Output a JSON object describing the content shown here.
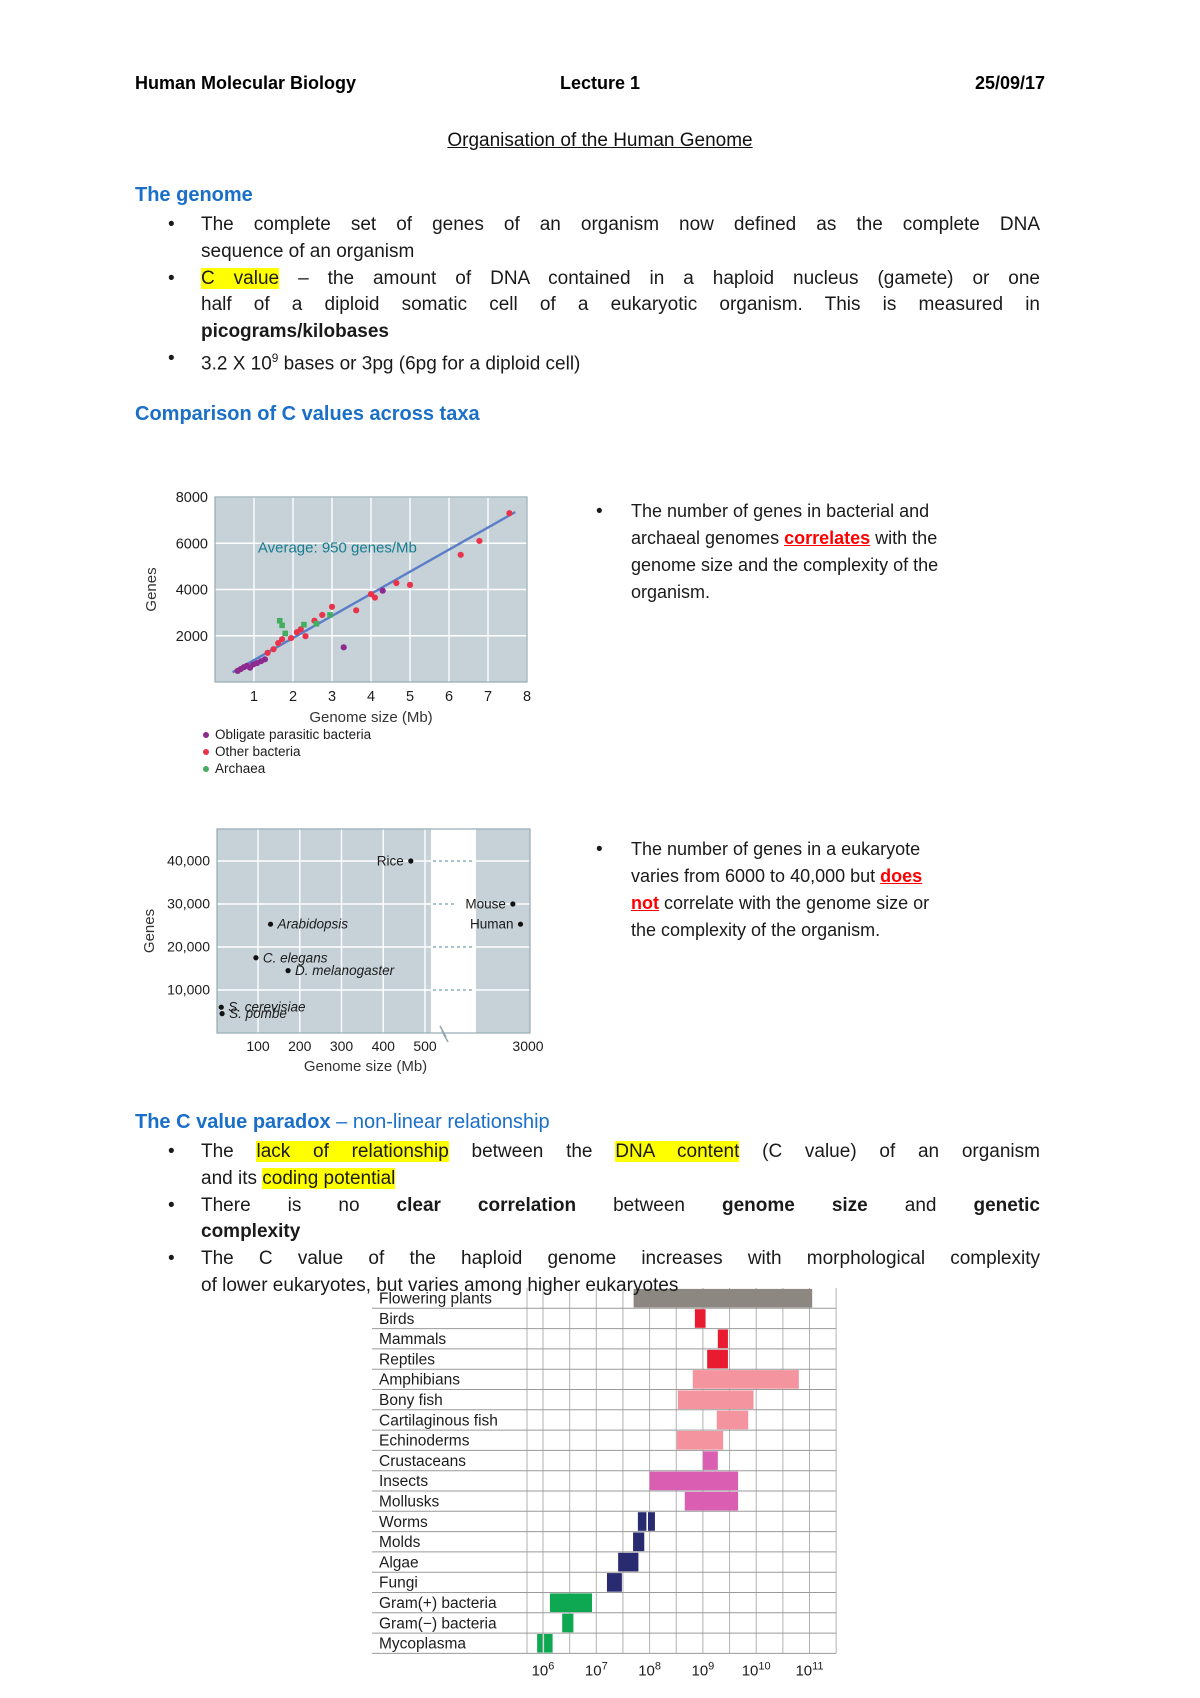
{
  "ui": {
    "bullet": "•"
  },
  "header": {
    "course": "Human Molecular Biology",
    "lecture": "Lecture 1",
    "date": "25/09/17"
  },
  "title": "Organisation of the Human Genome",
  "sections": {
    "genome": {
      "heading": "The genome",
      "bullets": [
        {
          "lines": [
            {
              "j": true,
              "s": [
                {
                  "t": "The complete set of genes of an organism now defined as the complete DNA"
                }
              ]
            },
            {
              "s": [
                {
                  "t": "sequence of an organism"
                }
              ]
            }
          ]
        },
        {
          "lines": [
            {
              "j": true,
              "s": [
                {
                  "t": "C value",
                  "hl": true
                },
                {
                  "t": " – the amount of DNA contained in a haploid nucleus (gamete) or one"
                }
              ]
            },
            {
              "j": true,
              "s": [
                {
                  "t": "half of a diploid somatic cell of a eukaryotic organism. This is measured in"
                }
              ]
            },
            {
              "s": [
                {
                  "t": "picograms/kilobases",
                  "b": true
                }
              ]
            }
          ]
        },
        {
          "lines": [
            {
              "s": [
                {
                  "t": "3.2 X 10"
                },
                {
                  "t": "9",
                  "sup": true
                },
                {
                  "t": " bases or 3pg (6pg for a diploid cell)"
                }
              ]
            }
          ]
        }
      ]
    },
    "comparison": {
      "heading": "Comparison of C values across taxa"
    },
    "paradox": {
      "heading_bold": "The C value paradox",
      "heading_rest": " – non-linear  relationship",
      "bullets": [
        {
          "lines": [
            {
              "j": true,
              "s": [
                {
                  "t": "The "
                },
                {
                  "t": "lack of relationship",
                  "hl": true
                },
                {
                  "t": " between the "
                },
                {
                  "t": "DNA content",
                  "hl": true
                },
                {
                  "t": " (C value) of an organism"
                }
              ]
            },
            {
              "s": [
                {
                  "t": "and its "
                },
                {
                  "t": "coding potential",
                  "hl": true
                }
              ]
            }
          ]
        },
        {
          "lines": [
            {
              "j": true,
              "s": [
                {
                  "t": "There is no "
                },
                {
                  "t": "clear correlation",
                  "b": true
                },
                {
                  "t": " between "
                },
                {
                  "t": "genome size",
                  "b": true
                },
                {
                  "t": " and "
                },
                {
                  "t": "genetic",
                  "b": true
                }
              ]
            },
            {
              "s": [
                {
                  "t": "complexity",
                  "b": true
                }
              ]
            }
          ]
        },
        {
          "lines": [
            {
              "j": true,
              "s": [
                {
                  "t": "The C value of the haploid genome increases with morphological complexity"
                }
              ]
            },
            {
              "s": [
                {
                  "t": "of lower eukaryotes, but varies among higher eukaryotes"
                }
              ]
            }
          ]
        }
      ]
    }
  },
  "side_notes": [
    {
      "lines": [
        {
          "s": [
            {
              "t": "The number of genes in bacterial and"
            }
          ]
        },
        {
          "s": [
            {
              "t": "archaeal genomes "
            },
            {
              "t": "correlates",
              "red": true
            },
            {
              "t": " with the"
            }
          ]
        },
        {
          "s": [
            {
              "t": "genome size and the complexity of the"
            }
          ]
        },
        {
          "s": [
            {
              "t": "organism."
            }
          ]
        }
      ]
    },
    {
      "lines": [
        {
          "s": [
            {
              "t": "The number of genes in a eukaryote"
            }
          ]
        },
        {
          "s": [
            {
              "t": "varies from 6000 to 40,000 but "
            },
            {
              "t": "does",
              "red": true
            }
          ]
        },
        {
          "s": [
            {
              "t": "not",
              "red": true
            },
            {
              "t": " correlate with the genome size or"
            }
          ]
        },
        {
          "s": [
            {
              "t": "the complexity of the organism."
            }
          ]
        }
      ]
    }
  ],
  "chart_data": [
    {
      "type": "scatter",
      "annotation": "Average: 950 genes/Mb",
      "annotation_color": "#177d8e",
      "xlabel": "Genome size (Mb)",
      "ylabel": "Genes",
      "xlim": [
        0,
        8
      ],
      "ylim": [
        0,
        8000
      ],
      "xticks": [
        1,
        2,
        3,
        4,
        5,
        6,
        7,
        8
      ],
      "yticks": [
        2000,
        4000,
        6000,
        8000
      ],
      "bg": "#c6d1d8",
      "trendline": {
        "x1": 0.45,
        "y1": 420,
        "x2": 7.7,
        "y2": 7350,
        "color": "#5b7ec8"
      },
      "legend": [
        {
          "label": "Obligate parasitic bacteria",
          "color": "#8d2a8f"
        },
        {
          "label": "Other bacteria",
          "color": "#e8334a"
        },
        {
          "label": "Archaea",
          "color": "#44ae60"
        }
      ],
      "series": [
        {
          "name": "Obligate parasitic bacteria",
          "color": "#8d2a8f",
          "marker": "circle",
          "points": [
            [
              0.58,
              480
            ],
            [
              0.66,
              560
            ],
            [
              0.74,
              640
            ],
            [
              0.82,
              700
            ],
            [
              0.9,
              620
            ],
            [
              0.98,
              760
            ],
            [
              1.08,
              820
            ],
            [
              1.18,
              900
            ],
            [
              1.28,
              980
            ],
            [
              3.3,
              1500
            ],
            [
              4.3,
              3950
            ]
          ]
        },
        {
          "name": "Other bacteria",
          "color": "#e8334a",
          "marker": "circle",
          "points": [
            [
              1.35,
              1260
            ],
            [
              1.5,
              1420
            ],
            [
              1.62,
              1680
            ],
            [
              1.72,
              1850
            ],
            [
              1.95,
              1900
            ],
            [
              2.1,
              2150
            ],
            [
              2.2,
              2280
            ],
            [
              2.32,
              1980
            ],
            [
              2.55,
              2650
            ],
            [
              2.75,
              2900
            ],
            [
              3.0,
              3250
            ],
            [
              3.62,
              3100
            ],
            [
              4.0,
              3800
            ],
            [
              4.1,
              3650
            ],
            [
              4.65,
              4280
            ],
            [
              5.0,
              4200
            ],
            [
              6.3,
              5500
            ],
            [
              6.78,
              6100
            ],
            [
              7.55,
              7300
            ]
          ]
        },
        {
          "name": "Archaea",
          "color": "#44ae60",
          "marker": "square",
          "points": [
            [
              1.66,
              2650
            ],
            [
              1.72,
              2450
            ],
            [
              1.8,
              2100
            ],
            [
              2.28,
              2480
            ],
            [
              2.6,
              2520
            ],
            [
              2.95,
              2900
            ]
          ]
        }
      ]
    },
    {
      "type": "scatter-broken-axis",
      "xlabel": "Genome size (Mb)",
      "ylabel": "Genes",
      "bg": "#c6d1d8",
      "xticks_left": [
        100,
        200,
        300,
        400,
        500
      ],
      "xtick_right": "3000",
      "ytick_labels": [
        "10,000",
        "20,000",
        "30,000",
        "40,000"
      ],
      "ytick_values": [
        10000,
        20000,
        30000,
        40000
      ],
      "points": [
        {
          "label": "Rice",
          "mb": 466,
          "genes": 40000,
          "side": "left",
          "italic": false
        },
        {
          "label": "Mouse",
          "mb": 2500,
          "genes": 30000,
          "side": "left",
          "italic": false
        },
        {
          "label": "Human",
          "mb": 2900,
          "genes": 25300,
          "side": "left",
          "italic": false
        },
        {
          "label": "Arabidopsis",
          "mb": 130,
          "genes": 25300,
          "side": "right",
          "italic": true
        },
        {
          "label": "C. elegans",
          "mb": 95,
          "genes": 17500,
          "side": "right",
          "italic": true
        },
        {
          "label": "D. melanogaster",
          "mb": 172,
          "genes": 14500,
          "side": "right",
          "italic": true
        },
        {
          "label": "S. cerevisiae",
          "mb": 12,
          "genes": 6000,
          "side": "right",
          "italic": true
        },
        {
          "label": "S. pombe",
          "mb": 14,
          "genes": 4500,
          "side": "right",
          "italic": true
        }
      ]
    },
    {
      "type": "bar-range-log",
      "xlabel_exponents": [
        6,
        7,
        8,
        9,
        10,
        11
      ],
      "x_base": "10",
      "rows": [
        {
          "label": "Flowering plants",
          "color": "#8c8781",
          "segments": [
            [
              7.7,
              11.05
            ]
          ]
        },
        {
          "label": "Birds",
          "color": "#e81b30",
          "segments": [
            [
              8.85,
              9.05
            ]
          ]
        },
        {
          "label": "Mammals",
          "color": "#e81b30",
          "segments": [
            [
              9.28,
              9.47
            ]
          ]
        },
        {
          "label": "Reptiles",
          "color": "#e81b30",
          "segments": [
            [
              9.08,
              9.47
            ]
          ]
        },
        {
          "label": "Amphibians",
          "color": "#f4949e",
          "segments": [
            [
              8.81,
              10.8
            ]
          ]
        },
        {
          "label": "Bony fish",
          "color": "#f4949e",
          "segments": [
            [
              8.53,
              9.95
            ]
          ]
        },
        {
          "label": "Cartilaginous fish",
          "color": "#f4949e",
          "segments": [
            [
              9.26,
              9.85
            ]
          ]
        },
        {
          "label": "Echinoderms",
          "color": "#f4949e",
          "segments": [
            [
              8.51,
              9.38
            ]
          ]
        },
        {
          "label": "Crustaceans",
          "color": "#da5fb2",
          "segments": [
            [
              9.0,
              9.28
            ]
          ]
        },
        {
          "label": "Insects",
          "color": "#da5fb2",
          "segments": [
            [
              8.0,
              9.66
            ]
          ]
        },
        {
          "label": "Mollusks",
          "color": "#da5fb2",
          "segments": [
            [
              8.66,
              9.66
            ]
          ]
        },
        {
          "label": "Worms",
          "color": "#282b70",
          "segments": [
            [
              7.78,
              7.94
            ],
            [
              7.97,
              8.1
            ]
          ]
        },
        {
          "label": "Molds",
          "color": "#282b70",
          "segments": [
            [
              7.69,
              7.9
            ]
          ]
        },
        {
          "label": "Algae",
          "color": "#282b70",
          "segments": [
            [
              7.41,
              7.79
            ]
          ]
        },
        {
          "label": "Fungi",
          "color": "#282b70",
          "segments": [
            [
              7.2,
              7.48
            ]
          ]
        },
        {
          "label": "Gram(+) bacteria",
          "color": "#0fa852",
          "segments": [
            [
              6.13,
              6.92
            ]
          ]
        },
        {
          "label": "Gram(−) bacteria",
          "color": "#0fa852",
          "segments": [
            [
              6.36,
              6.57
            ]
          ]
        },
        {
          "label": "Mycoplasma",
          "color": "#0fa852",
          "segments": [
            [
              5.89,
              5.99
            ],
            [
              6.02,
              6.18
            ]
          ]
        }
      ]
    }
  ]
}
